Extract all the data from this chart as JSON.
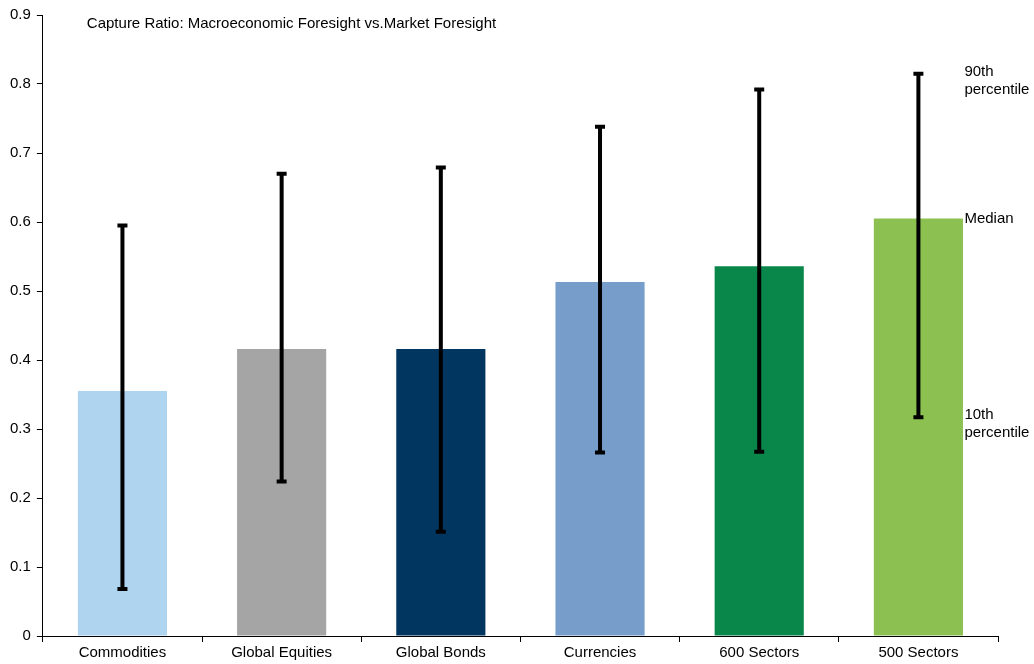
{
  "chart_data": {
    "type": "bar",
    "title": "Capture Ratio: Macroeconomic Foresight vs.Market Foresight",
    "categories": [
      "Commodities",
      "Global Equities",
      "Global Bonds",
      "Currencies",
      "600 Sectors",
      "500 Sectors"
    ],
    "values": [
      0.355,
      0.416,
      0.416,
      0.513,
      0.536,
      0.605
    ],
    "colors": [
      "#aed4f0",
      "#a5a5a5",
      "#003660",
      "#779ecb",
      "#09864a",
      "#8cc152"
    ],
    "errors": [
      [
        0.068,
        0.595
      ],
      [
        0.224,
        0.67
      ],
      [
        0.151,
        0.679
      ],
      [
        0.266,
        0.738
      ],
      [
        0.267,
        0.792
      ],
      [
        0.317,
        0.815
      ]
    ],
    "ylim": [
      0,
      0.9
    ],
    "yticks": [
      0,
      0.1,
      0.2,
      0.3,
      0.4,
      0.5,
      0.6,
      0.7,
      0.8,
      0.9
    ],
    "grid": false,
    "legend": false,
    "annotations": [
      "90th percentile",
      "Median",
      "10th percentile"
    ]
  }
}
